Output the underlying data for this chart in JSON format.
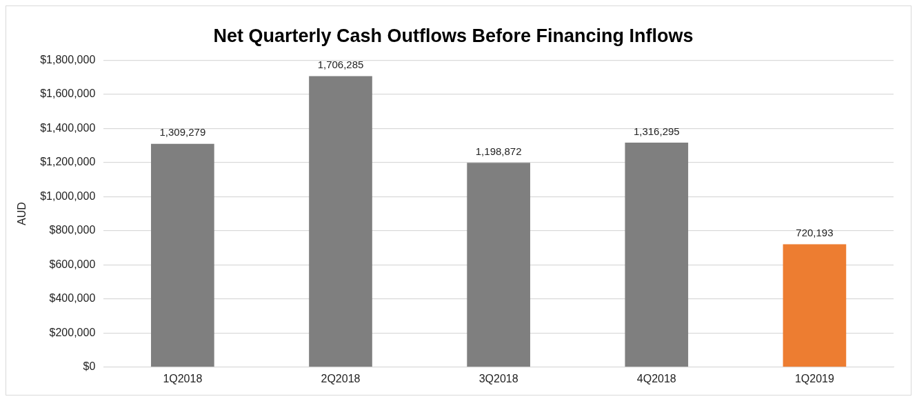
{
  "chart_data": {
    "type": "bar",
    "title": "Net Quarterly Cash Outflows Before Financing Inflows",
    "ylabel": "AUD",
    "categories": [
      "1Q2018",
      "2Q2018",
      "3Q2018",
      "4Q2018",
      "1Q2019"
    ],
    "values": [
      1309279,
      1706285,
      1198872,
      1316295,
      720193
    ],
    "colors": [
      "#7f7f7f",
      "#7f7f7f",
      "#7f7f7f",
      "#7f7f7f",
      "#ed7d31"
    ],
    "value_labels": [
      "1,309,279",
      "1,706,285",
      "1,198,872",
      "1,316,295",
      "720,193"
    ],
    "ylim": [
      0,
      1800000
    ],
    "yticks": [
      {
        "value": 0,
        "label": "$0"
      },
      {
        "value": 200000,
        "label": "$200,000"
      },
      {
        "value": 400000,
        "label": "$400,000"
      },
      {
        "value": 600000,
        "label": "$600,000"
      },
      {
        "value": 800000,
        "label": "$800,000"
      },
      {
        "value": 1000000,
        "label": "$1,000,000"
      },
      {
        "value": 1200000,
        "label": "$1,200,000"
      },
      {
        "value": 1400000,
        "label": "$1,400,000"
      },
      {
        "value": 1600000,
        "label": "$1,600,000"
      },
      {
        "value": 1800000,
        "label": "$1,800,000"
      }
    ],
    "grid": "y",
    "legend": false
  }
}
